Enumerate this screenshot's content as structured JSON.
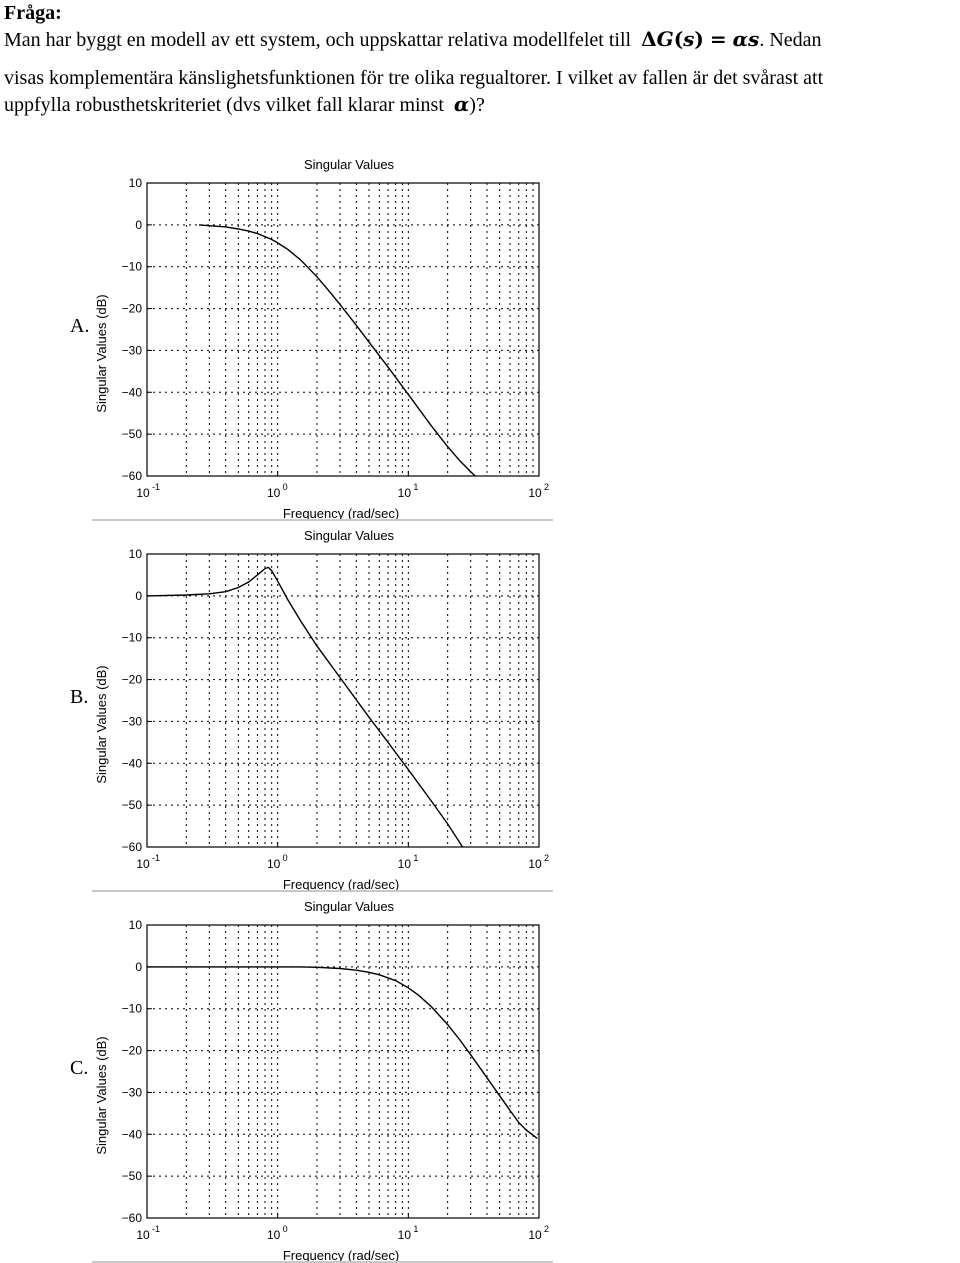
{
  "question": {
    "heading": "Fråga:",
    "line1_start": "Man har byggt en modell av ett system, och uppskattar relativa modellfelet till",
    "formula_delta": "Δ",
    "formula_g": "G",
    "formula_paren_open": "(",
    "formula_s": "s",
    "formula_paren_close": ")",
    "formula_equals": "=",
    "formula_rhs": "αs",
    "line1_end": ". Nedan",
    "line2": "visas komplementära känslighetsfunktionen för tre olika regualtorer. I vilket av fallen är det svårast att",
    "line3_start": "uppfylla robusthetskriteriet (dvs vilket fall klarar minst",
    "line3_alpha": "α",
    "line3_end": ")?"
  },
  "colors": {
    "line": "#000000",
    "grid": "#000000",
    "separator": "#c8c8c8",
    "background": "#ffffff"
  },
  "chart_data": [
    {
      "type": "line",
      "panel_label": "A.",
      "title": "Singular Values",
      "xlabel": "Frequency (rad/sec)",
      "ylabel": "Singular Values (dB)",
      "x_scale": "log",
      "xlim": [
        0.1,
        100
      ],
      "ylim": [
        -60,
        10
      ],
      "xticks": [
        0.1,
        1,
        10,
        100
      ],
      "xtick_base": "10",
      "xtick_exponents": [
        "-1",
        "0",
        "1",
        "2"
      ],
      "yticks": [
        10,
        0,
        -10,
        -20,
        -30,
        -40,
        -50,
        -60
      ],
      "ytick_labels": [
        "10",
        "0",
        "−10",
        "−20",
        "−30",
        "−40",
        "−50",
        "−60"
      ],
      "grid": true,
      "series": [
        {
          "x": [
            0.25,
            0.3,
            0.4,
            0.5,
            0.6,
            0.7,
            0.8,
            0.9,
            1.0,
            1.2,
            1.5,
            2.0,
            2.5,
            3.0,
            4.0,
            5.0,
            7.0,
            10.0,
            15.0,
            20.0,
            25.0,
            30.0,
            32.5
          ],
          "y": [
            0,
            -0.2,
            -0.5,
            -1.0,
            -1.5,
            -2.1,
            -2.8,
            -3.5,
            -4.3,
            -5.9,
            -8.4,
            -12.4,
            -16.0,
            -19.0,
            -24.0,
            -28.0,
            -34.0,
            -40.5,
            -48.0,
            -53.0,
            -56.5,
            -59.0,
            -60.0
          ]
        }
      ]
    },
    {
      "type": "line",
      "panel_label": "B.",
      "title": "Singular Values",
      "xlabel": "Frequency (rad/sec)",
      "ylabel": "Singular Values (dB)",
      "x_scale": "log",
      "xlim": [
        0.1,
        100
      ],
      "ylim": [
        -60,
        10
      ],
      "xticks": [
        0.1,
        1,
        10,
        100
      ],
      "xtick_base": "10",
      "xtick_exponents": [
        "-1",
        "0",
        "1",
        "2"
      ],
      "yticks": [
        10,
        0,
        -10,
        -20,
        -30,
        -40,
        -50,
        -60
      ],
      "ytick_labels": [
        "10",
        "0",
        "−10",
        "−20",
        "−30",
        "−40",
        "−50",
        "−60"
      ],
      "grid": true,
      "series": [
        {
          "x": [
            0.1,
            0.2,
            0.3,
            0.4,
            0.5,
            0.6,
            0.7,
            0.8,
            0.85,
            0.9,
            1.0,
            1.2,
            1.5,
            2.0,
            3.0,
            5.0,
            7.0,
            10.0,
            15.0,
            20.0,
            26.0
          ],
          "y": [
            0,
            0.2,
            0.5,
            1.0,
            2.0,
            3.3,
            5.0,
            6.5,
            6.8,
            6.0,
            3.5,
            -1.0,
            -6.0,
            -12.0,
            -19.5,
            -29.0,
            -35.0,
            -41.5,
            -49.0,
            -54.5,
            -60.0
          ]
        }
      ]
    },
    {
      "type": "line",
      "panel_label": "C.",
      "title": "Singular Values",
      "xlabel": "Frequency (rad/sec)",
      "ylabel": "Singular Values (dB)",
      "x_scale": "log",
      "xlim": [
        0.1,
        100
      ],
      "ylim": [
        -60,
        10
      ],
      "xticks": [
        0.1,
        1,
        10,
        100
      ],
      "xtick_base": "10",
      "xtick_exponents": [
        "-1",
        "0",
        "1",
        "2"
      ],
      "yticks": [
        10,
        0,
        -10,
        -20,
        -30,
        -40,
        -50,
        -60
      ],
      "ytick_labels": [
        "10",
        "0",
        "−10",
        "−20",
        "−30",
        "−40",
        "−50",
        "−60"
      ],
      "grid": true,
      "series": [
        {
          "x": [
            0.1,
            0.3,
            0.8,
            1.5,
            2.0,
            3.0,
            4.0,
            5.0,
            6.0,
            8.0,
            10.0,
            12.0,
            15.0,
            20.0,
            25.0,
            30.0,
            40.0,
            50.0,
            60.0,
            70.0,
            80.0,
            90.0,
            97.0
          ],
          "y": [
            0,
            0,
            0,
            0,
            -0.1,
            -0.4,
            -0.8,
            -1.3,
            -1.9,
            -3.3,
            -5.0,
            -6.8,
            -9.5,
            -13.8,
            -17.6,
            -21.0,
            -26.5,
            -30.8,
            -34.3,
            -37.2,
            -39.0,
            -40.2,
            -41.0
          ]
        }
      ]
    }
  ]
}
